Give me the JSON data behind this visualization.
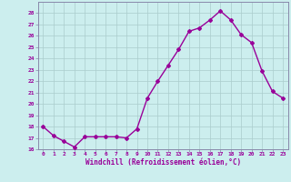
{
  "x": [
    0,
    1,
    2,
    3,
    4,
    5,
    6,
    7,
    8,
    9,
    10,
    11,
    12,
    13,
    14,
    15,
    16,
    17,
    18,
    19,
    20,
    21,
    22,
    23
  ],
  "y": [
    18.0,
    17.2,
    16.7,
    16.2,
    17.1,
    17.1,
    17.1,
    17.1,
    17.0,
    17.8,
    20.5,
    22.0,
    23.4,
    24.8,
    26.4,
    26.7,
    27.4,
    28.2,
    27.4,
    26.1,
    25.4,
    22.9,
    21.1,
    20.5
  ],
  "line_color": "#990099",
  "marker": "D",
  "marker_size": 2,
  "line_width": 1.0,
  "bg_color": "#cceeee",
  "grid_color": "#aacccc",
  "xlabel": "Windchill (Refroidissement éolien,°C)",
  "xlabel_color": "#990099",
  "tick_color": "#990099",
  "ylim": [
    16,
    29
  ],
  "xlim": [
    -0.5,
    23.5
  ],
  "yticks": [
    16,
    17,
    18,
    19,
    20,
    21,
    22,
    23,
    24,
    25,
    26,
    27,
    28
  ],
  "xticks": [
    0,
    1,
    2,
    3,
    4,
    5,
    6,
    7,
    8,
    9,
    10,
    11,
    12,
    13,
    14,
    15,
    16,
    17,
    18,
    19,
    20,
    21,
    22,
    23
  ],
  "spine_color": "#8888aa"
}
